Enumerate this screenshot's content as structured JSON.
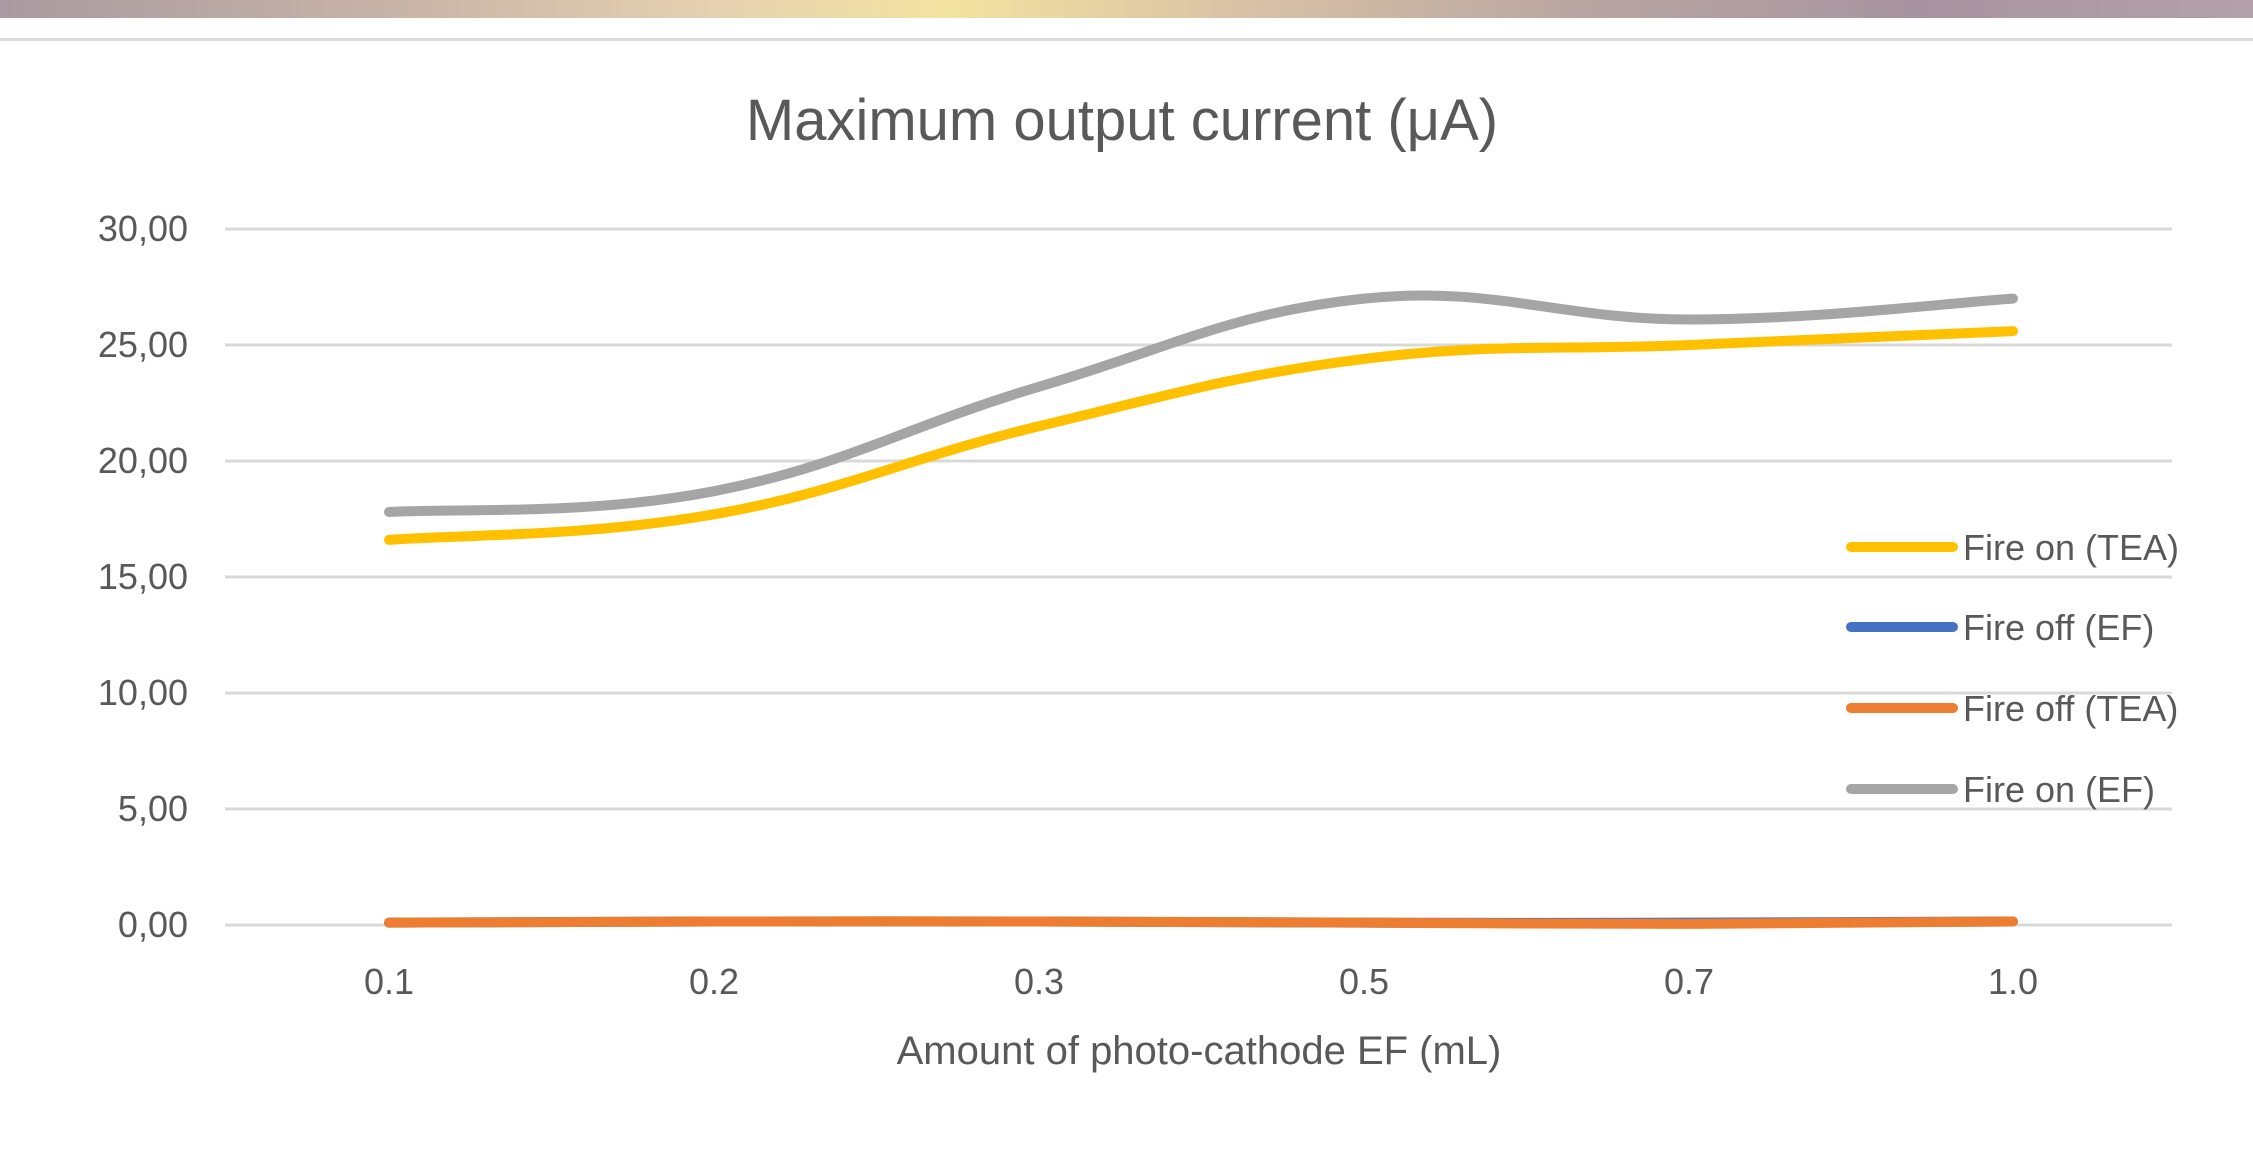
{
  "chart_data": {
    "type": "line",
    "title": "Maximum output current (μA)",
    "xlabel": "Amount of photo-cathode EF (mL)",
    "ylabel": "",
    "categories": [
      "0.1",
      "0.2",
      "0.3",
      "0.5",
      "0.7",
      "1.0"
    ],
    "ylim": [
      0,
      30
    ],
    "yticks": [
      "0,00",
      "5,00",
      "10,00",
      "15,00",
      "20,00",
      "25,00",
      "30,00"
    ],
    "grid": true,
    "legend_position": "right",
    "series": [
      {
        "name": "Fire on (TEA)",
        "color": "#FFC000",
        "values": [
          16.6,
          17.7,
          21.5,
          24.4,
          25.0,
          25.6
        ]
      },
      {
        "name": "Fire off (EF)",
        "color": "#4472C4",
        "values": [
          0.1,
          0.15,
          0.15,
          0.1,
          0.1,
          0.15
        ]
      },
      {
        "name": "Fire off (TEA)",
        "color": "#ED7D31",
        "values": [
          0.1,
          0.15,
          0.15,
          0.1,
          0.05,
          0.15
        ]
      },
      {
        "name": "Fire on (EF)",
        "color": "#A5A5A5",
        "values": [
          17.8,
          18.7,
          23.2,
          27.0,
          26.1,
          27.0
        ]
      }
    ]
  }
}
